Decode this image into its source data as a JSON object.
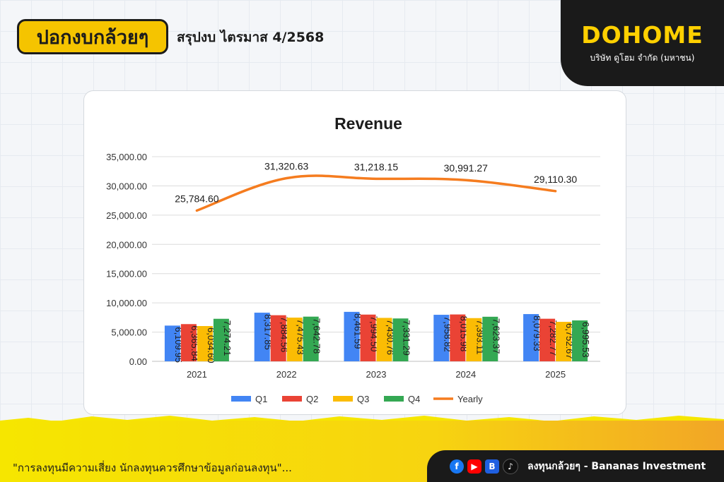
{
  "header": {
    "logo_text": "ปอกงบกล้วยๆ",
    "title": "สรุปงบ ไตรมาส 4/2568"
  },
  "brand": {
    "name": "DOHOME",
    "subtitle": "บริษัท ดูโฮม จำกัด (มหาชน)"
  },
  "footer": {
    "disclaimer": "\"การลงทุนมีความเสี่ยง นักลงทุนควรศึกษาข้อมูลก่อนลงทุน\"...",
    "social_text": "ลงทุนกล้วยๆ - Bananas Investment",
    "icons": [
      "facebook-icon",
      "youtube-icon",
      "blockdit-icon",
      "tiktok-icon"
    ]
  },
  "colors": {
    "Q1": "#4285f4",
    "Q2": "#ea4335",
    "Q3": "#fbbc04",
    "Q4": "#34a853",
    "Yearly": "#f57c1f",
    "brand": "#ffd000"
  },
  "chart_data": {
    "type": "bar",
    "title": "Revenue",
    "categories": [
      "2021",
      "2022",
      "2023",
      "2024",
      "2025"
    ],
    "series": [
      {
        "name": "Q1",
        "values": [
          6109.95,
          8317.85,
          8461.59,
          7958.82,
          8079.33
        ],
        "labels": [
          "6,109.95",
          "8,317.85",
          "8,461.59",
          "7,958.82",
          "8,079.33"
        ]
      },
      {
        "name": "Q2",
        "values": [
          6365.84,
          7884.56,
          7994.5,
          8015.98,
          7282.77
        ],
        "labels": [
          "6,365.84",
          "7,884.56",
          "7,994.50",
          "8,015.98",
          "7,282.77"
        ]
      },
      {
        "name": "Q3",
        "values": [
          6034.6,
          7475.43,
          7430.76,
          7393.11,
          6752.67
        ],
        "labels": [
          "6,034.60",
          "7,475.43",
          "7,430.76",
          "7,393.11",
          "6,752.67"
        ]
      },
      {
        "name": "Q4",
        "values": [
          7274.21,
          7642.78,
          7331.29,
          7623.37,
          6995.53
        ],
        "labels": [
          "7,274.21",
          "7,642.78",
          "7,331.29",
          "7,623.37",
          "6,995.53"
        ]
      }
    ],
    "line": {
      "name": "Yearly",
      "type": "line",
      "values": [
        25784.6,
        31320.63,
        31218.15,
        30991.27,
        29110.3
      ],
      "labels": [
        "25,784.60",
        "31,320.63",
        "31,218.15",
        "30,991.27",
        "29,110.30"
      ]
    },
    "yticks": [
      "0.00",
      "5,000.00",
      "10,000.00",
      "15,000.00",
      "20,000.00",
      "25,000.00",
      "30,000.00",
      "35,000.00"
    ],
    "ylim": [
      0,
      35000
    ],
    "grid": true,
    "legend_position": "bottom"
  }
}
